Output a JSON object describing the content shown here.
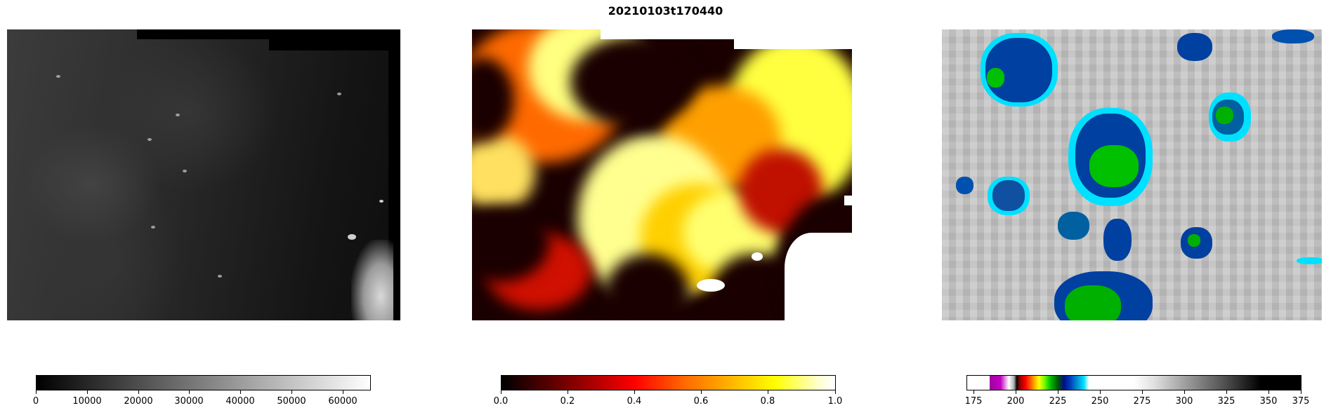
{
  "title": "20210103t170440",
  "colorbars": [
    {
      "ticks": [
        "0",
        "10000",
        "20000",
        "30000",
        "40000",
        "50000",
        "60000"
      ]
    },
    {
      "ticks": [
        "0.0",
        "0.2",
        "0.4",
        "0.6",
        "0.8",
        "1.0"
      ]
    },
    {
      "ticks": [
        "175",
        "200",
        "225",
        "250",
        "275",
        "300",
        "325",
        "350",
        "375"
      ]
    }
  ]
}
